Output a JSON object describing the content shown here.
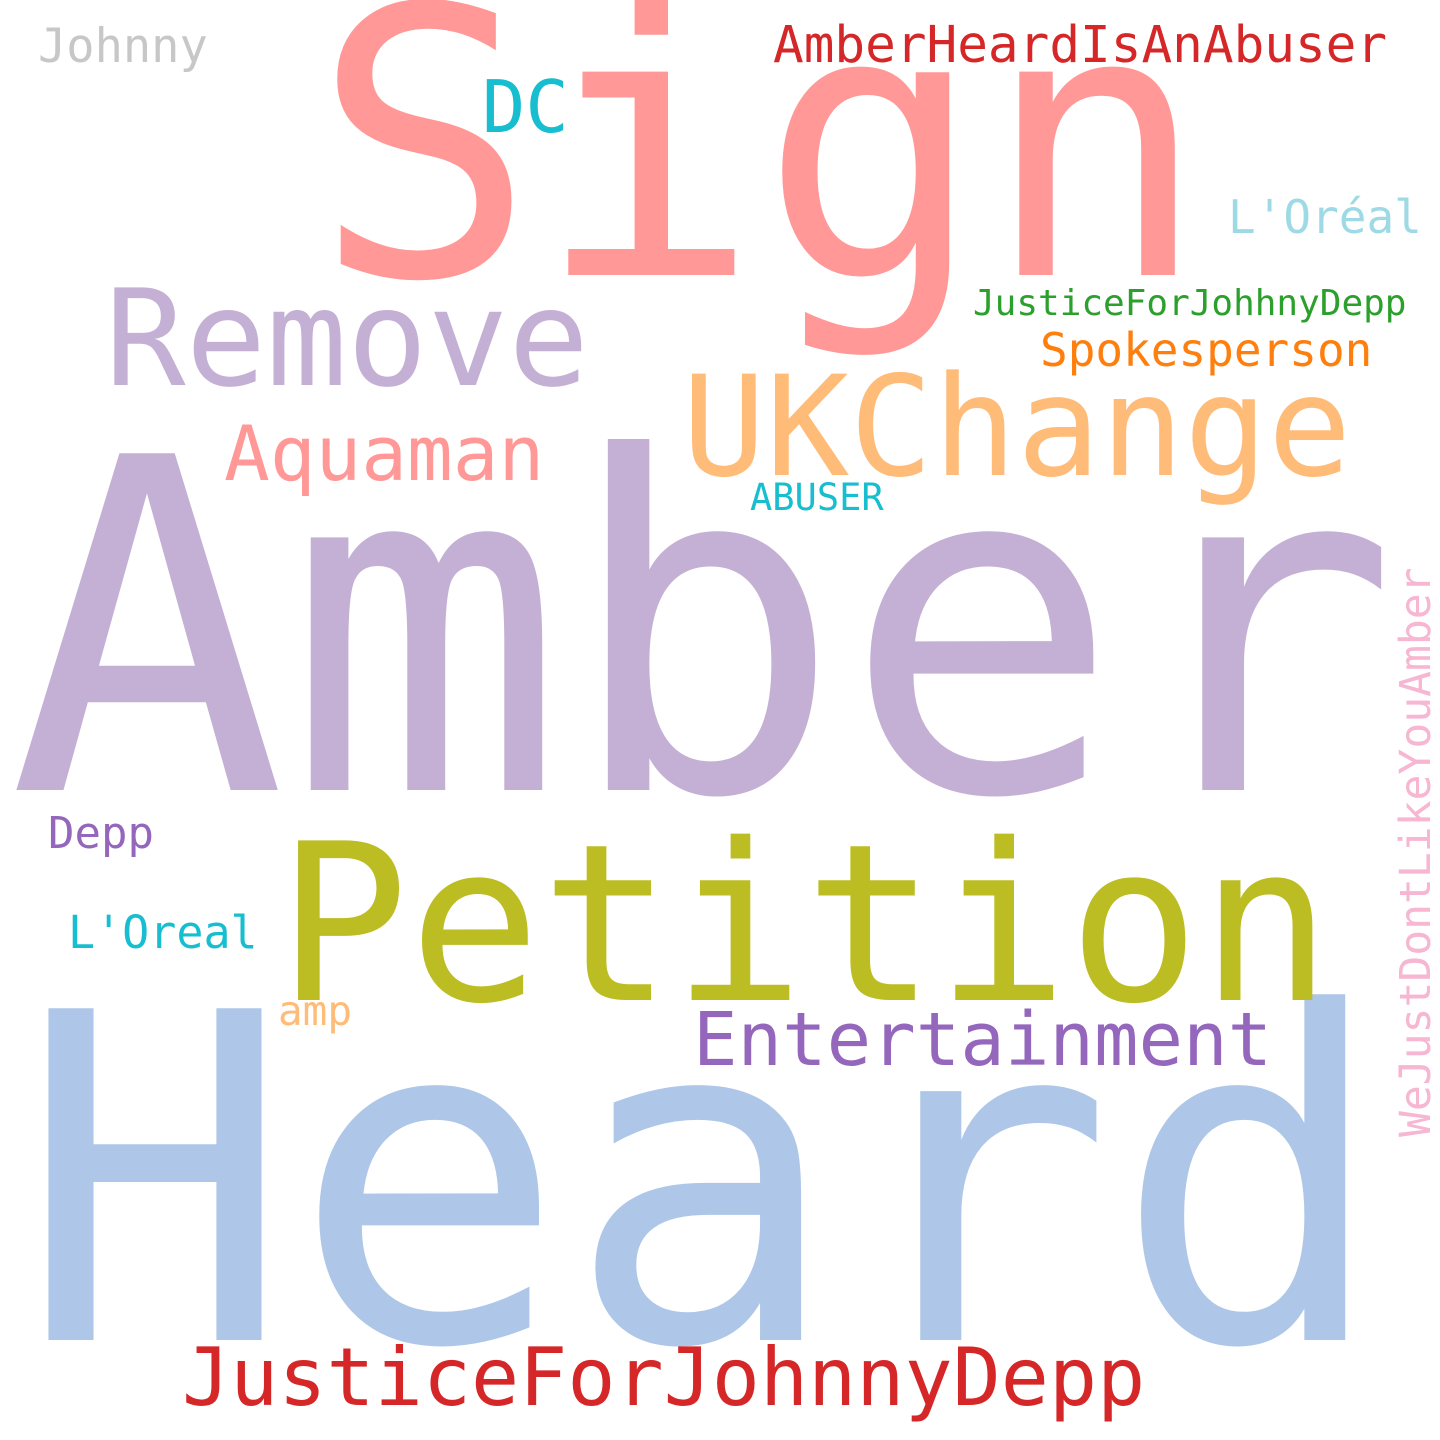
{
  "words": [
    {
      "text": "Sign",
      "color": "#ff9896"
    },
    {
      "text": "Amber",
      "color": "#c5b0d5"
    },
    {
      "text": "Heard",
      "color": "#aec7e8"
    },
    {
      "text": "Petition",
      "color": "#bcbd22"
    },
    {
      "text": "UKChange",
      "color": "#ffbb78"
    },
    {
      "text": "Remove",
      "color": "#c5b0d5"
    },
    {
      "text": "JusticeForJohnnyDepp",
      "color": "#d62728"
    },
    {
      "text": "Entertainment",
      "color": "#9467bd"
    },
    {
      "text": "Aquaman",
      "color": "#ff9896"
    },
    {
      "text": "AmberHeardIsAnAbuser",
      "color": "#d62728"
    },
    {
      "text": "DC",
      "color": "#17becf"
    },
    {
      "text": "Johnny",
      "color": "#c7c7c7"
    },
    {
      "text": "L'Oréal",
      "color": "#9edae5"
    },
    {
      "text": "JusticeForJohhnyDepp",
      "color": "#2ca02c"
    },
    {
      "text": "Spokesperson",
      "color": "#ff7f0e"
    },
    {
      "text": "ABUSER",
      "color": "#17becf"
    },
    {
      "text": "Depp",
      "color": "#9467bd"
    },
    {
      "text": "L'Oreal",
      "color": "#17becf"
    },
    {
      "text": "amp",
      "color": "#ffbb78"
    },
    {
      "text": "WeJustDontLikeYouAmber",
      "color": "#f7b6d2"
    }
  ]
}
